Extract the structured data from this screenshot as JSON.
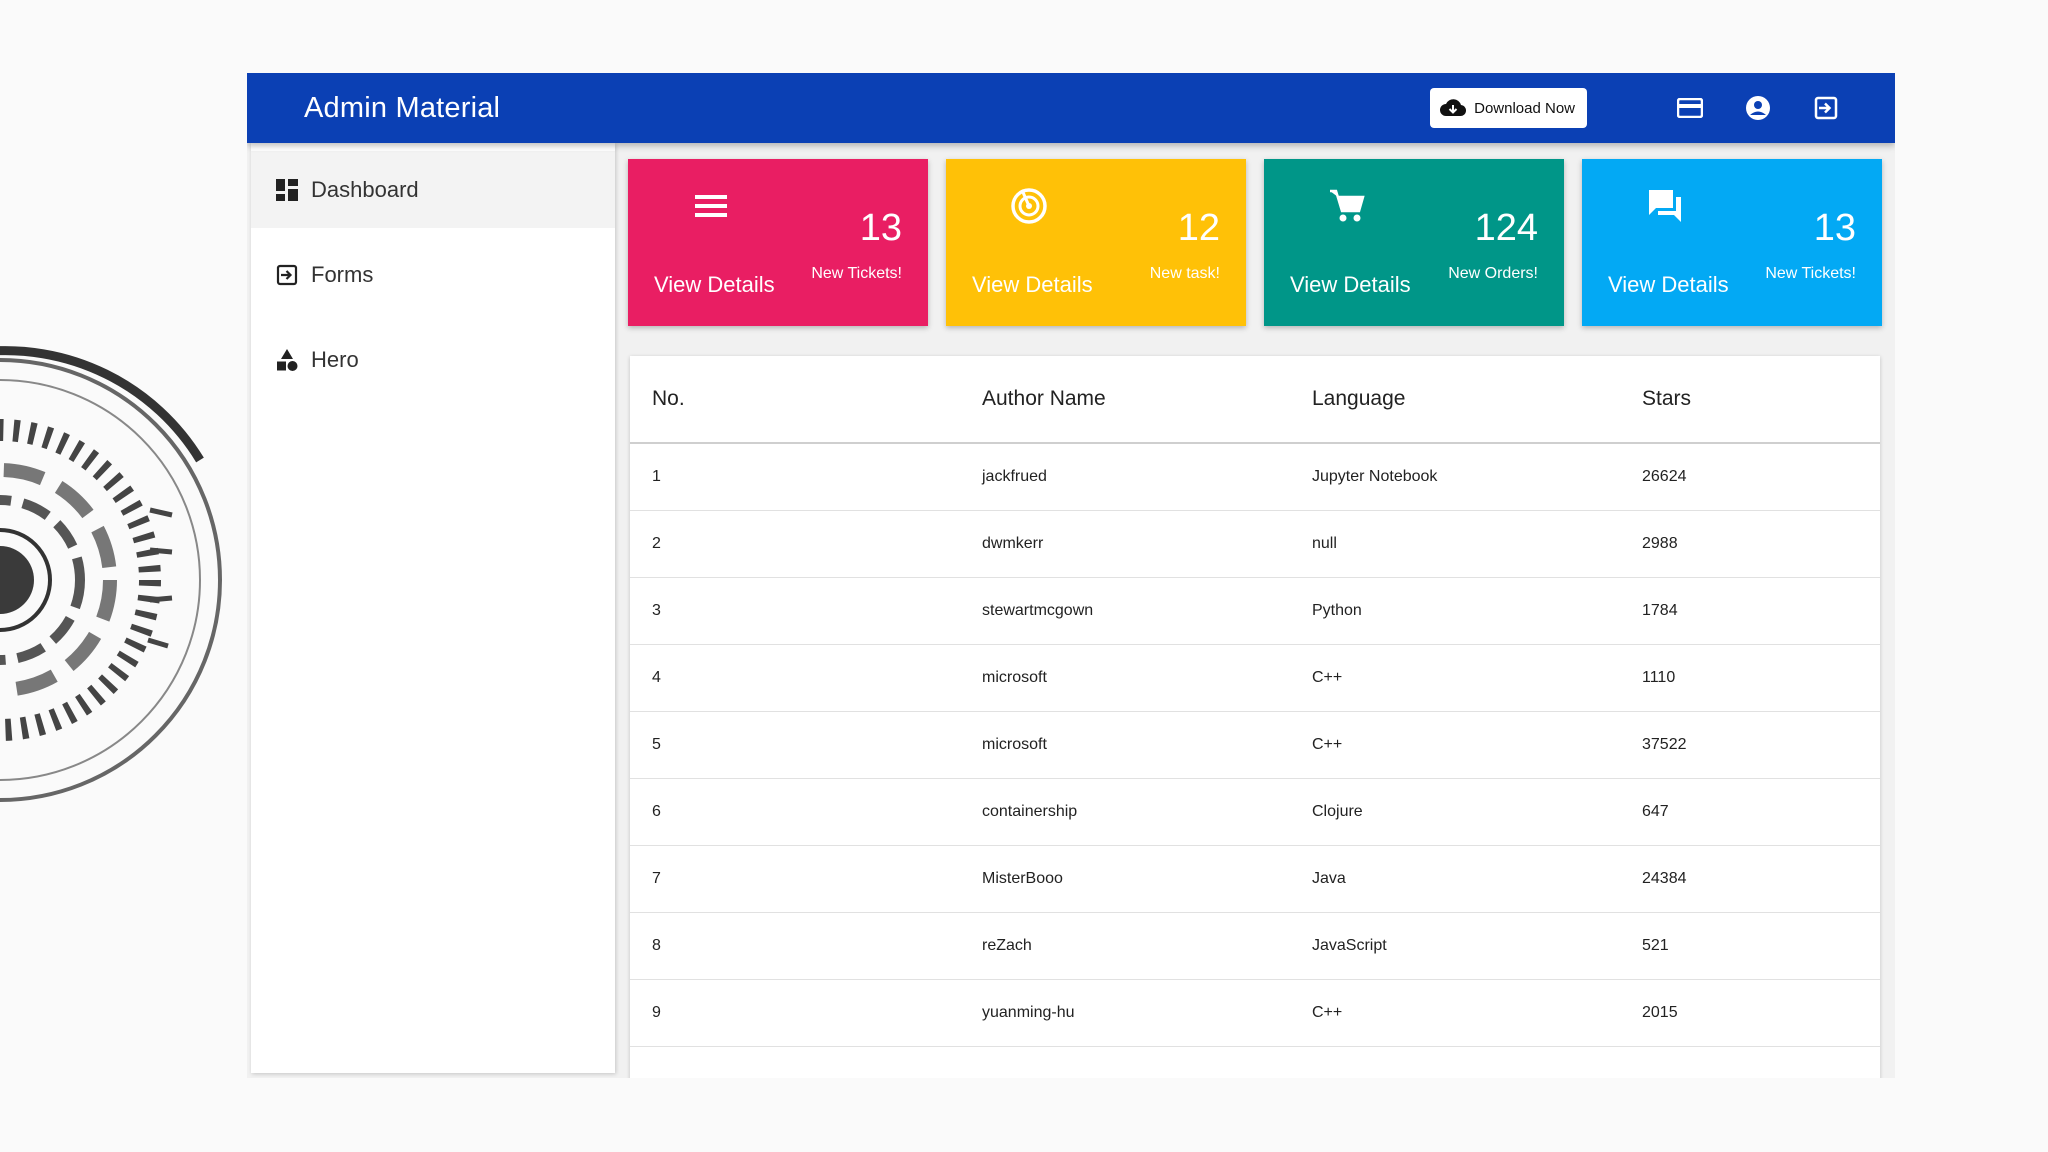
{
  "app": {
    "title": "Admin Material"
  },
  "toolbar": {
    "download_label": "Download Now",
    "download_icon": "cloud-download-icon",
    "icons": [
      "card-icon",
      "account-circle-icon",
      "logout-icon"
    ]
  },
  "colors": {
    "topbar": "#0b40b4",
    "card_pink": "#e91e63",
    "card_amber": "#ffc107",
    "card_teal": "#009688",
    "card_blue": "#03a9f4"
  },
  "sidebar": {
    "items": [
      {
        "label": "Dashboard",
        "icon": "dashboard-icon",
        "active": true
      },
      {
        "label": "Forms",
        "icon": "login-icon",
        "active": false
      },
      {
        "label": "Hero",
        "icon": "category-icon",
        "active": false
      }
    ]
  },
  "cards": [
    {
      "count": "13",
      "view": "View Details",
      "caption": "New Tickets!",
      "icon": "menu-icon"
    },
    {
      "count": "12",
      "view": "View Details",
      "caption": "New task!",
      "icon": "target-icon"
    },
    {
      "count": "124",
      "view": "View Details",
      "caption": "New Orders!",
      "icon": "cart-icon"
    },
    {
      "count": "13",
      "view": "View Details",
      "caption": "New Tickets!",
      "icon": "forum-icon"
    }
  ],
  "table": {
    "headers": [
      "No.",
      "Author Name",
      "Language",
      "Stars"
    ],
    "rows": [
      [
        "1",
        "jackfrued",
        "Jupyter Notebook",
        "26624"
      ],
      [
        "2",
        "dwmkerr",
        "null",
        "2988"
      ],
      [
        "3",
        "stewartmcgown",
        "Python",
        "1784"
      ],
      [
        "4",
        "microsoft",
        "C++",
        "1110"
      ],
      [
        "5",
        "microsoft",
        "C++",
        "37522"
      ],
      [
        "6",
        "containership",
        "Clojure",
        "647"
      ],
      [
        "7",
        "MisterBooo",
        "Java",
        "24384"
      ],
      [
        "8",
        "reZach",
        "JavaScript",
        "521"
      ],
      [
        "9",
        "yuanming-hu",
        "C++",
        "2015"
      ]
    ]
  }
}
